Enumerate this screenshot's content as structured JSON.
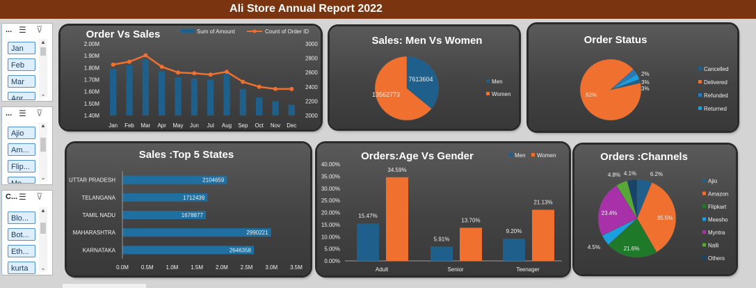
{
  "report_title": "Ali Store Annual Report 2022",
  "slicers": [
    {
      "title": "...",
      "items": [
        "Jan",
        "Feb",
        "Mar",
        "Apr"
      ]
    },
    {
      "title": "...",
      "items": [
        "Ajio",
        "Am...",
        "Flip...",
        "Me..."
      ]
    },
    {
      "title": "C...",
      "items": [
        "Blo...",
        "Bot...",
        "Eth...",
        "kurta"
      ]
    }
  ],
  "chart_data": [
    {
      "id": "order_vs_sales",
      "type": "bar",
      "title": "Order Vs Sales",
      "categories": [
        "Jan",
        "Feb",
        "Mar",
        "Apr",
        "May",
        "Jun",
        "Jul",
        "Aug",
        "Sep",
        "Oct",
        "Nov",
        "Dec"
      ],
      "series": [
        {
          "name": "Sum of Amount",
          "type": "bar",
          "axis": "left",
          "values": [
            1.79,
            1.82,
            1.87,
            1.77,
            1.72,
            1.71,
            1.7,
            1.75,
            1.62,
            1.55,
            1.52,
            1.49
          ]
        },
        {
          "name": "Count of Order ID",
          "type": "line",
          "axis": "right",
          "values": [
            2710,
            2750,
            2840,
            2680,
            2600,
            2590,
            2570,
            2610,
            2470,
            2400,
            2370,
            2370
          ]
        }
      ],
      "y_left": {
        "ticks": [
          "1.40M",
          "1.50M",
          "1.60M",
          "1.70M",
          "1.80M",
          "1.90M",
          "2.00M"
        ],
        "min": 1.4,
        "max": 2.0
      },
      "y_right": {
        "ticks": [
          "2000",
          "2200",
          "2400",
          "2600",
          "2800",
          "3000"
        ],
        "min": 2000,
        "max": 3000
      },
      "legend": "top",
      "colors": {
        "bar": "#1f5f8b",
        "line": "#f07030"
      }
    },
    {
      "id": "sales_men_women",
      "type": "pie",
      "title": "Sales: Men Vs Women",
      "labels": [
        "Men",
        "Women"
      ],
      "values": [
        7613604,
        13562773
      ],
      "data_labels": [
        "7613604",
        "13562773"
      ],
      "colors": [
        "#1f5f8b",
        "#f07030"
      ],
      "legend": "right"
    },
    {
      "id": "order_status",
      "type": "pie",
      "title": "Order Status",
      "labels": [
        "Cancelled",
        "Delivered",
        "Refunded",
        "Returned"
      ],
      "values": [
        2,
        92,
        3,
        3
      ],
      "data_labels": [
        "2%",
        "92%",
        "3%",
        "3%"
      ],
      "colors": [
        "#1f5f8b",
        "#f07030",
        "#2a7ab8",
        "#1aa0e0"
      ],
      "legend": "right"
    },
    {
      "id": "top_states",
      "type": "bar",
      "orientation": "horizontal",
      "title": "Sales :Top 5 States",
      "categories": [
        "UTTAR PRADESH",
        "TELANGANA",
        "TAMIL NADU",
        "MAHARASHTRA",
        "KARNATAKA"
      ],
      "values": [
        2104659,
        1712439,
        1678877,
        2990221,
        2646358
      ],
      "data_labels": [
        "2104659",
        "1712439",
        "1678877",
        "2990221",
        "2646358"
      ],
      "x_ticks": [
        "0.0M",
        "0.5M",
        "1.0M",
        "1.5M",
        "2.0M",
        "2.5M",
        "3.0M",
        "3.5M"
      ],
      "xlim": [
        0,
        3.5
      ],
      "colors": {
        "bar": "#1f6fa0"
      }
    },
    {
      "id": "age_vs_gender",
      "type": "bar",
      "title": "Orders:Age Vs Gender",
      "categories": [
        "Adult",
        "Senior",
        "Teenager"
      ],
      "series": [
        {
          "name": "Men",
          "values": [
            15.47,
            5.91,
            9.2
          ],
          "labels": [
            "15.47%",
            "5.91%",
            "9.20%"
          ]
        },
        {
          "name": "Women",
          "values": [
            34.59,
            13.7,
            21.13
          ],
          "labels": [
            "34.59%",
            "13.70%",
            "21.13%"
          ]
        }
      ],
      "y_ticks": [
        "0.00%",
        "5.00%",
        "10.00%",
        "15.00%",
        "20.00%",
        "25.00%",
        "30.00%",
        "35.00%",
        "40.00%"
      ],
      "ylim": [
        0,
        40
      ],
      "legend": "top-right",
      "colors": [
        "#1f5f8b",
        "#f07030"
      ]
    },
    {
      "id": "channels",
      "type": "pie",
      "title": "Orders :Channels",
      "labels": [
        "Ajio",
        "Amazon",
        "Flipkart",
        "Meesho",
        "Myntra",
        "Nalli",
        "Others"
      ],
      "values": [
        6.2,
        35.5,
        21.6,
        4.5,
        23.4,
        4.8,
        4.1
      ],
      "data_labels": [
        "6.2%",
        "35.5%",
        "21.6%",
        "4.5%",
        "23.4%",
        "4.8%",
        "4.1%"
      ],
      "colors": [
        "#1f5f8b",
        "#f07030",
        "#1e7a28",
        "#1aa0e0",
        "#a830a8",
        "#58a838",
        "#174468"
      ],
      "legend": "right"
    }
  ]
}
